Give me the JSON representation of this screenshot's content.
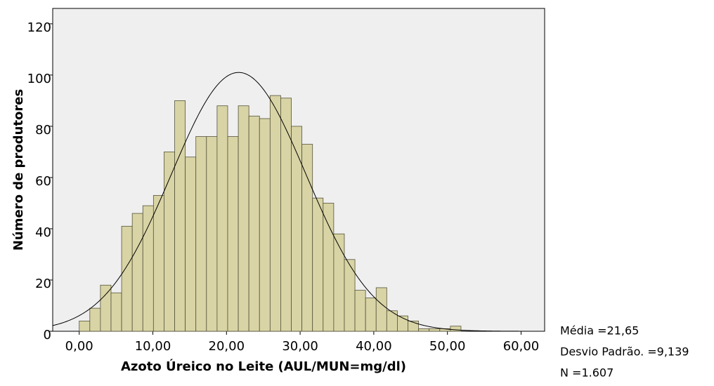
{
  "chart_data": {
    "type": "histogram",
    "x_label": "Azoto Úreico no Leite (AUL/MUN=mg/dl)",
    "y_label": "Número de produtores",
    "bins": [
      0,
      1.44,
      2.88,
      4.32,
      5.76,
      7.2,
      8.64,
      10.08,
      11.52,
      12.96,
      14.4,
      15.84,
      17.28,
      18.72,
      20.16,
      21.6,
      23.04,
      24.48,
      25.92,
      27.36,
      28.8,
      30.24,
      31.68,
      33.12,
      34.56,
      36,
      37.44,
      38.88,
      40.32,
      41.76,
      43.2,
      44.64,
      46.08,
      47.52,
      48.96,
      50.4,
      51.84
    ],
    "values": [
      4,
      9,
      18,
      15,
      41,
      46,
      49,
      53,
      70,
      90,
      68,
      76,
      76,
      88,
      76,
      88,
      84,
      83,
      92,
      91,
      80,
      73,
      52,
      50,
      38,
      28,
      16,
      13,
      17,
      8,
      6,
      4,
      1,
      1,
      1,
      2
    ],
    "color": "#d9d4a5",
    "xlim": [
      -3.6,
      63.2
    ],
    "ylim": [
      0,
      126
    ],
    "xticks": [
      {
        "value": 0,
        "label": "0,00"
      },
      {
        "value": 10,
        "label": "10,00"
      },
      {
        "value": 20,
        "label": "20,00"
      },
      {
        "value": 30,
        "label": "30,00"
      },
      {
        "value": 40,
        "label": "40,00"
      },
      {
        "value": 50,
        "label": "50,00"
      },
      {
        "value": 60,
        "label": "60,00"
      }
    ],
    "yticks": [
      0,
      20,
      40,
      60,
      80,
      100,
      120
    ],
    "stats": [
      {
        "value": 21.65,
        "label": "Média =21,65"
      },
      {
        "value": 9.139,
        "label": "Desvio Padrão. =9,139"
      },
      {
        "value": 1607,
        "label": "N =1.607"
      }
    ]
  }
}
